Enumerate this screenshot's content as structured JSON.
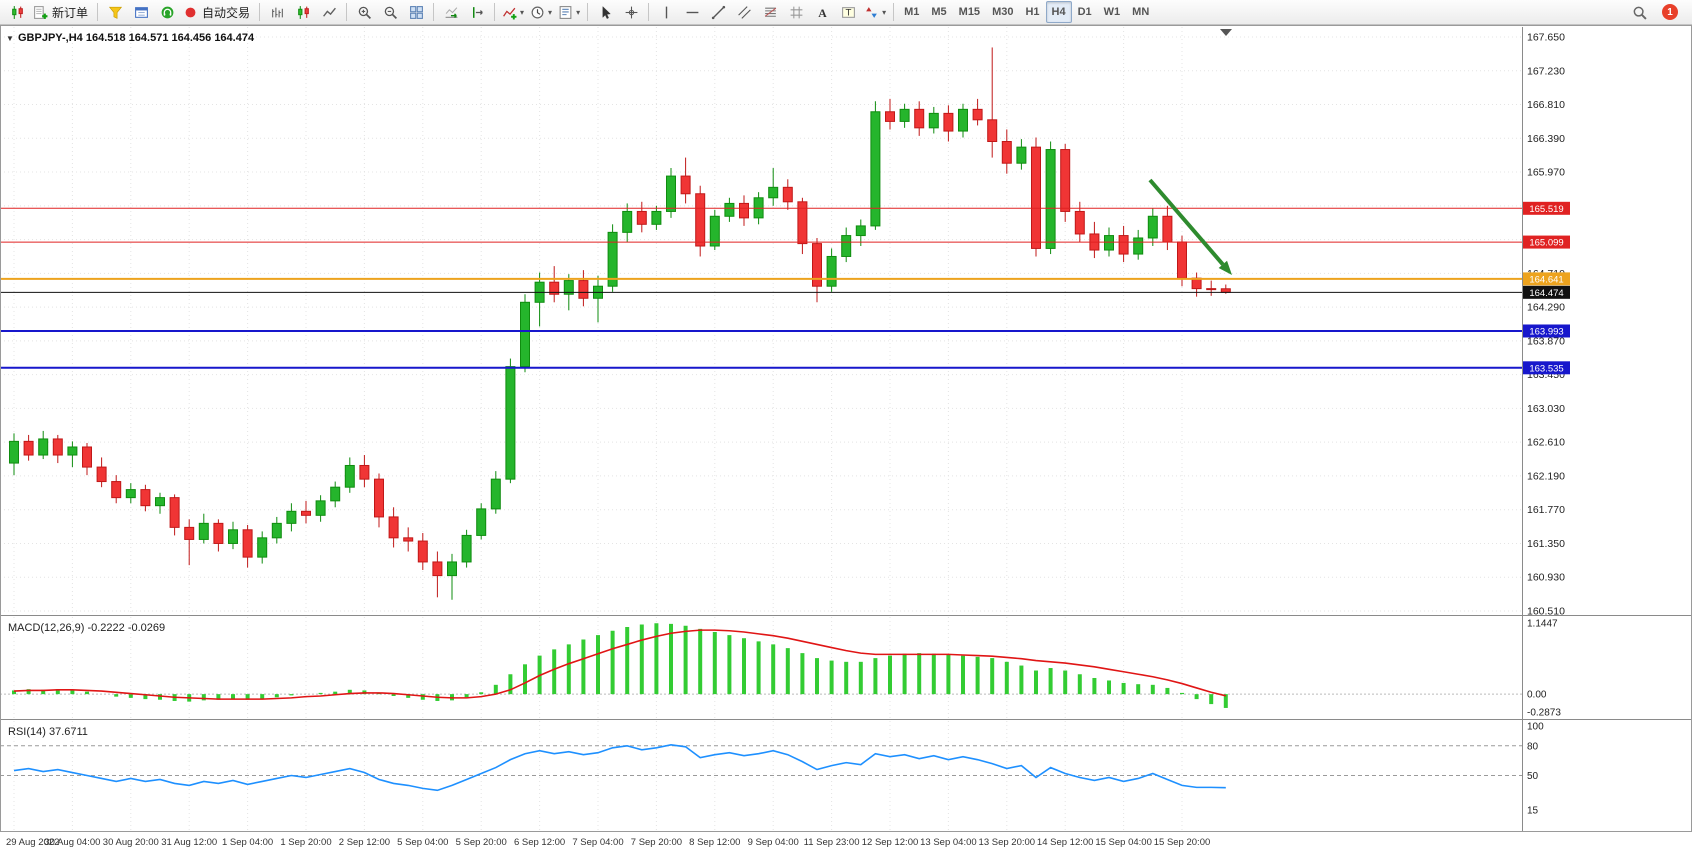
{
  "toolbar": {
    "groups": [
      {
        "items": [
          {
            "name": "new-chart-button",
            "icon": "candlestick-chart"
          },
          {
            "name": "new-order-button",
            "icon": "new-order",
            "label": "新订单"
          }
        ]
      },
      {
        "items": [
          {
            "name": "market-watch-button",
            "icon": "market-watch"
          },
          {
            "name": "data-window-button",
            "icon": "data-window"
          },
          {
            "name": "mql5-community-button",
            "icon": "headset"
          },
          {
            "name": "autotrading-button",
            "icon": "autotrading",
            "label": "自动交易"
          }
        ]
      },
      {
        "items": [
          {
            "name": "bar-chart-button",
            "icon": "bar-chart"
          },
          {
            "name": "candles-view-button",
            "icon": "candlestick-chart"
          },
          {
            "name": "line-chart-button",
            "icon": "line-chart"
          }
        ]
      },
      {
        "items": [
          {
            "name": "zoom-in-button",
            "icon": "zoom-in"
          },
          {
            "name": "zoom-out-button",
            "icon": "zoom-out"
          },
          {
            "name": "tile-windows-button",
            "icon": "tile-windows"
          }
        ]
      },
      {
        "items": [
          {
            "name": "auto-scroll-button",
            "icon": "auto-scroll"
          },
          {
            "name": "chart-shift-button",
            "icon": "chart-shift"
          }
        ]
      },
      {
        "items": [
          {
            "name": "indicators-button",
            "icon": "indicators",
            "caret": true
          },
          {
            "name": "periods-button",
            "icon": "clock",
            "caret": true
          },
          {
            "name": "templates-button",
            "icon": "templates",
            "caret": true
          }
        ]
      },
      {
        "items": [
          {
            "name": "cursor-button",
            "icon": "cursor"
          },
          {
            "name": "crosshair-button",
            "icon": "crosshair"
          }
        ]
      },
      {
        "items": [
          {
            "name": "vertical-line-button",
            "icon": "vertical-line"
          },
          {
            "name": "horizontal-line-button",
            "icon": "horizontal-line"
          },
          {
            "name": "trendline-button",
            "icon": "trendline"
          },
          {
            "name": "equidistant-channel-button",
            "icon": "channel"
          },
          {
            "name": "fibonacci-button",
            "icon": "fibonacci"
          },
          {
            "name": "grid-button",
            "icon": "grid"
          },
          {
            "name": "text-button",
            "icon": "text"
          },
          {
            "name": "text-label-button",
            "icon": "text-label"
          },
          {
            "name": "arrows-button",
            "icon": "arrows",
            "caret": true
          }
        ]
      },
      {
        "items": [
          {
            "name": "timeframe-m1-button",
            "label": "M1"
          },
          {
            "name": "timeframe-m5-button",
            "label": "M5"
          },
          {
            "name": "timeframe-m15-button",
            "label": "M15"
          },
          {
            "name": "timeframe-m30-button",
            "label": "M30"
          },
          {
            "name": "timeframe-h1-button",
            "label": "H1"
          },
          {
            "name": "timeframe-h4-button",
            "label": "H4",
            "active": true
          },
          {
            "name": "timeframe-d1-button",
            "label": "D1"
          },
          {
            "name": "timeframe-w1-button",
            "label": "W1"
          },
          {
            "name": "timeframe-mn-button",
            "label": "MN"
          }
        ]
      }
    ],
    "active_timeframe": "H4",
    "right": {
      "badge_count": "1"
    }
  },
  "chart": {
    "collapse_icon": "▼",
    "symbol": "GBPJPY-",
    "period": "H4",
    "title": "GBPJPY-,H4 164.518 164.571 164.456 164.474",
    "colors": {
      "up_candle": "#25b52c",
      "up_border": "#0f8c0f",
      "down_candle": "#f03535",
      "down_border": "#c01818",
      "macd_histogram": "#33cc33",
      "macd_signal": "#e01515",
      "rsi_line": "#1E90FF",
      "arrow": "#2e8b2e"
    },
    "hlines": [
      {
        "price": 165.519,
        "label": "165.519",
        "color": "#e02222",
        "width": 1,
        "name": "resistance-line-1"
      },
      {
        "price": 165.099,
        "label": "165.099",
        "color": "#e02222",
        "width": 1,
        "name": "resistance-line-2"
      },
      {
        "price": 164.641,
        "label": "164.641",
        "color": "#eda31e",
        "width": 2,
        "name": "support-line-orange"
      },
      {
        "price": 164.474,
        "label": "164.474",
        "color": "#111111",
        "width": 1,
        "name": "current-price-line"
      },
      {
        "price": 163.993,
        "label": "163.993",
        "color": "#1717cc",
        "width": 2,
        "name": "support-line-blue-1"
      },
      {
        "price": 163.535,
        "label": "163.535",
        "color": "#1717cc",
        "width": 2,
        "name": "support-line-blue-2"
      }
    ],
    "price_ticks": [
      "167.650",
      "167.230",
      "166.810",
      "166.390",
      "165.970",
      "165.550",
      "165.130",
      "164.710",
      "164.290",
      "163.870",
      "163.450",
      "163.030",
      "162.610",
      "162.190",
      "161.770",
      "161.350",
      "160.930",
      "160.510"
    ],
    "time_labels": [
      "29 Aug 2022",
      "30 Aug 04:00",
      "30 Aug 20:00",
      "31 Aug 12:00",
      "1 Sep 04:00",
      "1 Sep 20:00",
      "2 Sep 12:00",
      "5 Sep 04:00",
      "5 Sep 20:00",
      "6 Sep 12:00",
      "7 Sep 04:00",
      "7 Sep 20:00",
      "8 Sep 12:00",
      "9 Sep 04:00",
      "11 Sep 23:00",
      "12 Sep 12:00",
      "13 Sep 04:00",
      "13 Sep 20:00",
      "14 Sep 12:00",
      "15 Sep 04:00",
      "15 Sep 20:00"
    ],
    "arrow": {
      "from": [
        1150,
        155
      ],
      "to": [
        1232,
        250
      ],
      "color": "#2e8b2e",
      "width": 4
    }
  },
  "indicators": {
    "macd_label": "MACD(12,26,9) -0.2222 -0.0269",
    "rsi_label": "RSI(14) 37.6711"
  },
  "chart_data": [
    {
      "type": "candlestick",
      "symbol": "GBPJPY-",
      "timeframe": "H4",
      "ohlc_current": {
        "open": 164.518,
        "high": 164.571,
        "low": 164.456,
        "close": 164.474
      },
      "ylim": [
        160.51,
        167.65
      ],
      "candles": [
        [
          162.35,
          162.72,
          162.2,
          162.62
        ],
        [
          162.62,
          162.7,
          162.38,
          162.45
        ],
        [
          162.45,
          162.75,
          162.4,
          162.65
        ],
        [
          162.65,
          162.7,
          162.35,
          162.45
        ],
        [
          162.45,
          162.62,
          162.3,
          162.55
        ],
        [
          162.55,
          162.6,
          162.2,
          162.3
        ],
        [
          162.3,
          162.42,
          162.05,
          162.12
        ],
        [
          162.12,
          162.2,
          161.85,
          161.92
        ],
        [
          161.92,
          162.1,
          161.85,
          162.02
        ],
        [
          162.02,
          162.08,
          161.75,
          161.82
        ],
        [
          161.82,
          161.98,
          161.72,
          161.92
        ],
        [
          161.92,
          161.96,
          161.45,
          161.55
        ],
        [
          161.55,
          161.65,
          161.08,
          161.4
        ],
        [
          161.4,
          161.72,
          161.35,
          161.6
        ],
        [
          161.6,
          161.65,
          161.25,
          161.35
        ],
        [
          161.35,
          161.62,
          161.28,
          161.52
        ],
        [
          161.52,
          161.58,
          161.05,
          161.18
        ],
        [
          161.18,
          161.5,
          161.1,
          161.42
        ],
        [
          161.42,
          161.68,
          161.35,
          161.6
        ],
        [
          161.6,
          161.85,
          161.5,
          161.75
        ],
        [
          161.75,
          161.88,
          161.6,
          161.7
        ],
        [
          161.7,
          161.95,
          161.62,
          161.88
        ],
        [
          161.88,
          162.12,
          161.8,
          162.05
        ],
        [
          162.05,
          162.42,
          161.98,
          162.32
        ],
        [
          162.32,
          162.45,
          162.05,
          162.15
        ],
        [
          162.15,
          162.22,
          161.55,
          161.68
        ],
        [
          161.68,
          161.8,
          161.3,
          161.42
        ],
        [
          161.42,
          161.55,
          161.25,
          161.38
        ],
        [
          161.38,
          161.48,
          161.02,
          161.12
        ],
        [
          161.12,
          161.25,
          160.68,
          160.95
        ],
        [
          160.95,
          161.22,
          160.65,
          161.12
        ],
        [
          161.12,
          161.52,
          161.05,
          161.45
        ],
        [
          161.45,
          161.85,
          161.4,
          161.78
        ],
        [
          161.78,
          162.25,
          161.72,
          162.15
        ],
        [
          162.15,
          163.65,
          162.1,
          163.55
        ],
        [
          163.55,
          164.45,
          163.48,
          164.35
        ],
        [
          164.35,
          164.72,
          164.05,
          164.6
        ],
        [
          164.6,
          164.8,
          164.35,
          164.45
        ],
        [
          164.45,
          164.7,
          164.25,
          164.62
        ],
        [
          164.62,
          164.75,
          164.3,
          164.4
        ],
        [
          164.4,
          164.68,
          164.1,
          164.55
        ],
        [
          164.55,
          165.32,
          164.48,
          165.22
        ],
        [
          165.22,
          165.58,
          165.1,
          165.48
        ],
        [
          165.48,
          165.6,
          165.22,
          165.32
        ],
        [
          165.32,
          165.55,
          165.25,
          165.48
        ],
        [
          165.48,
          166.02,
          165.4,
          165.92
        ],
        [
          165.92,
          166.15,
          165.58,
          165.7
        ],
        [
          165.7,
          165.8,
          164.92,
          165.05
        ],
        [
          165.05,
          165.5,
          165.0,
          165.42
        ],
        [
          165.42,
          165.65,
          165.35,
          165.58
        ],
        [
          165.58,
          165.68,
          165.3,
          165.4
        ],
        [
          165.4,
          165.72,
          165.32,
          165.65
        ],
        [
          165.65,
          166.02,
          165.55,
          165.78
        ],
        [
          165.78,
          165.88,
          165.5,
          165.6
        ],
        [
          165.6,
          165.65,
          164.95,
          165.08
        ],
        [
          165.08,
          165.15,
          164.35,
          164.55
        ],
        [
          164.55,
          165.02,
          164.48,
          164.92
        ],
        [
          164.92,
          165.28,
          164.85,
          165.18
        ],
        [
          165.18,
          165.38,
          165.05,
          165.3
        ],
        [
          165.3,
          166.85,
          165.25,
          166.72
        ],
        [
          166.72,
          166.88,
          166.5,
          166.6
        ],
        [
          166.6,
          166.82,
          166.52,
          166.75
        ],
        [
          166.75,
          166.85,
          166.42,
          166.52
        ],
        [
          166.52,
          166.78,
          166.45,
          166.7
        ],
        [
          166.7,
          166.8,
          166.35,
          166.48
        ],
        [
          166.48,
          166.82,
          166.4,
          166.75
        ],
        [
          166.75,
          166.88,
          166.55,
          166.62
        ],
        [
          166.62,
          167.52,
          166.15,
          166.35
        ],
        [
          166.35,
          166.5,
          165.95,
          166.08
        ],
        [
          166.08,
          166.38,
          166.0,
          166.28
        ],
        [
          166.28,
          166.4,
          164.92,
          165.02
        ],
        [
          165.02,
          166.35,
          164.95,
          166.25
        ],
        [
          166.25,
          166.32,
          165.35,
          165.48
        ],
        [
          165.48,
          165.6,
          165.1,
          165.2
        ],
        [
          165.2,
          165.35,
          164.9,
          165.0
        ],
        [
          165.0,
          165.28,
          164.92,
          165.18
        ],
        [
          165.18,
          165.3,
          164.85,
          164.95
        ],
        [
          164.95,
          165.25,
          164.88,
          165.15
        ],
        [
          165.15,
          165.52,
          165.05,
          165.42
        ],
        [
          165.42,
          165.55,
          165.0,
          165.1
        ],
        [
          165.1,
          165.18,
          164.55,
          164.65
        ],
        [
          164.65,
          164.72,
          164.42,
          164.52
        ],
        [
          164.52,
          164.62,
          164.43,
          164.518
        ],
        [
          164.518,
          164.571,
          164.456,
          164.474
        ]
      ]
    },
    {
      "type": "bar",
      "name": "MACD(12,26,9)",
      "current_macd": -0.2222,
      "current_signal": -0.0269,
      "ylim": [
        -0.2873,
        1.1447
      ],
      "yticks": [
        "1.1447",
        "0.00",
        "-0.2873"
      ],
      "values": [
        0.06,
        0.08,
        0.07,
        0.08,
        0.06,
        0.04,
        0.0,
        -0.04,
        -0.06,
        -0.08,
        -0.09,
        -0.11,
        -0.12,
        -0.1,
        -0.09,
        -0.08,
        -0.09,
        -0.07,
        -0.05,
        -0.02,
        0.0,
        0.02,
        0.04,
        0.07,
        0.06,
        0.02,
        -0.03,
        -0.06,
        -0.09,
        -0.11,
        -0.1,
        -0.05,
        0.03,
        0.15,
        0.32,
        0.48,
        0.62,
        0.72,
        0.8,
        0.88,
        0.95,
        1.02,
        1.08,
        1.12,
        1.14,
        1.13,
        1.1,
        1.05,
        1.0,
        0.95,
        0.9,
        0.85,
        0.8,
        0.74,
        0.66,
        0.58,
        0.54,
        0.52,
        0.52,
        0.58,
        0.62,
        0.65,
        0.66,
        0.65,
        0.63,
        0.62,
        0.6,
        0.58,
        0.52,
        0.46,
        0.38,
        0.42,
        0.38,
        0.32,
        0.26,
        0.22,
        0.18,
        0.16,
        0.15,
        0.1,
        0.02,
        -0.08,
        -0.16,
        -0.2222
      ],
      "signal": [
        0.05,
        0.06,
        0.06,
        0.07,
        0.07,
        0.06,
        0.05,
        0.03,
        0.01,
        -0.01,
        -0.03,
        -0.05,
        -0.06,
        -0.07,
        -0.08,
        -0.08,
        -0.08,
        -0.08,
        -0.07,
        -0.06,
        -0.04,
        -0.03,
        -0.01,
        0.01,
        0.02,
        0.02,
        0.01,
        -0.01,
        -0.03,
        -0.05,
        -0.06,
        -0.06,
        -0.04,
        0.0,
        0.07,
        0.18,
        0.3,
        0.4,
        0.49,
        0.57,
        0.65,
        0.73,
        0.8,
        0.87,
        0.93,
        0.98,
        1.01,
        1.03,
        1.03,
        1.02,
        1.0,
        0.97,
        0.94,
        0.9,
        0.85,
        0.8,
        0.75,
        0.7,
        0.66,
        0.64,
        0.64,
        0.64,
        0.64,
        0.64,
        0.64,
        0.63,
        0.62,
        0.61,
        0.59,
        0.57,
        0.54,
        0.52,
        0.5,
        0.47,
        0.44,
        0.4,
        0.36,
        0.32,
        0.28,
        0.23,
        0.17,
        0.1,
        0.03,
        -0.0269
      ]
    },
    {
      "type": "line",
      "name": "RSI(14)",
      "current": 37.6711,
      "levels": [
        80,
        50
      ],
      "yticks": [
        "100",
        "80",
        "50",
        "15"
      ],
      "values": [
        55,
        57,
        54,
        56,
        53,
        50,
        47,
        44,
        47,
        44,
        46,
        42,
        40,
        44,
        42,
        45,
        41,
        44,
        47,
        50,
        48,
        51,
        54,
        57,
        53,
        46,
        42,
        40,
        37,
        35,
        40,
        46,
        52,
        58,
        66,
        72,
        75,
        72,
        74,
        71,
        73,
        78,
        80,
        76,
        78,
        81,
        79,
        68,
        71,
        73,
        70,
        72,
        75,
        71,
        64,
        56,
        60,
        63,
        61,
        72,
        69,
        71,
        67,
        70,
        66,
        69,
        66,
        62,
        57,
        60,
        48,
        58,
        52,
        48,
        45,
        48,
        44,
        47,
        52,
        46,
        40,
        38,
        38,
        37.67
      ]
    }
  ]
}
